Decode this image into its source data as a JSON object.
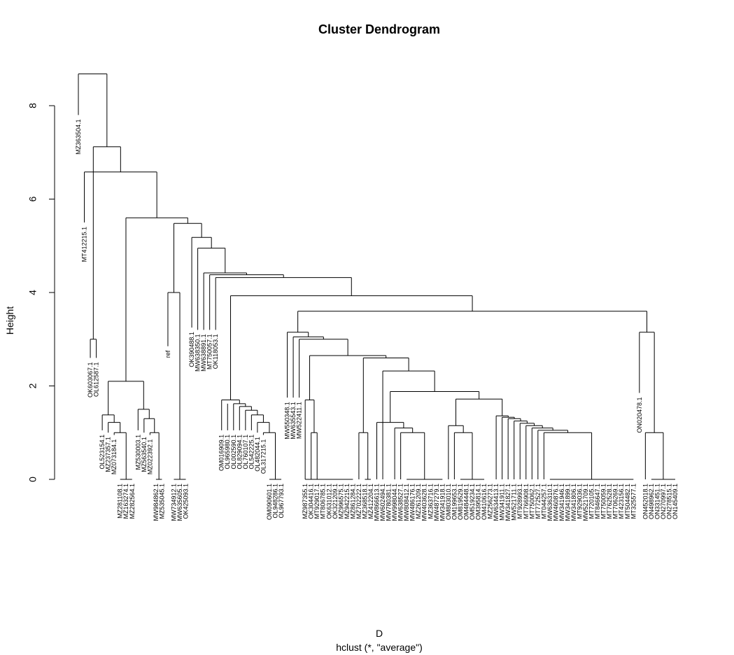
{
  "chart_data": {
    "type": "dendrogram",
    "title": "Cluster Dendrogram",
    "ylabel": "Height",
    "xlabel": "D",
    "subtitle": "hclust (*, \"average\")",
    "ylim": [
      0,
      9
    ],
    "y_ticks": [
      0,
      2,
      4,
      6,
      8
    ],
    "grid": false,
    "leaves": [
      "MZ363504.1",
      "MT412215.1",
      "OK603067.1",
      "OL612587.1",
      "OL523154.1",
      "MZ237357.1",
      "MZ073184.1",
      "MZ281108.1",
      "MZ163274.1",
      "MZ282564.1",
      "MZ530003.1",
      "MZ563540.1",
      "MZ022392.1",
      "MW984862.1",
      "MZ535045.1",
      "ref",
      "MW734912.1",
      "MW635605.1",
      "OK425093.1",
      "OK390488.1",
      "MW638350.1",
      "MW638891.1",
      "MT750057.1",
      "OK118053.1",
      "OM016909.1",
      "OL965980.1",
      "OL002590.1",
      "OL829094.1",
      "OL760107.1",
      "OL542225.1",
      "OL482044.1",
      "OL317215.1",
      "OM090601.1",
      "OL948286.1",
      "OL967793.1",
      "MW550348.1",
      "MW635543.1",
      "MW522411.1",
      "MZ987355.1",
      "OK304416.1",
      "MT929017.1",
      "MT806785.1",
      "OK631012.1",
      "OK321209.1",
      "MZ996575.1",
      "MZ942215.1",
      "MZ861284.1",
      "MZ702222.1",
      "MZ368518.1",
      "MZ412204.1",
      "MW866613.1",
      "MW602494.1",
      "MW780381.1",
      "MW998044.1",
      "MW638527.1",
      "MW808412.1",
      "MW486176.1",
      "MZ261209.1",
      "MW403628.1",
      "MZ363716.1",
      "MW487279.1",
      "MW341918.1",
      "OM803010.1",
      "OM199653.1",
      "OM819529.1",
      "OM484448.1",
      "OM519234.1",
      "OM395814.1",
      "OM410616.1",
      "MZ256273.1",
      "MW634413.1",
      "MW341911.1",
      "MW341827.1",
      "MW521711.1",
      "MT928993.1",
      "MT766908.1",
      "MT750062.1",
      "MT772527.1",
      "MT044257.1",
      "MW636310.1",
      "MW460876.1",
      "MW341946.1",
      "MW341899.1",
      "MW341806.1",
      "MT929036.1",
      "MW521709.1",
      "MT720105.1",
      "MT846647.1",
      "MT750059.1",
      "MT762528.1",
      "MT706269.1",
      "MT423156.1",
      "MT504482.1",
      "MT325577.1",
      "ON020478.1",
      "ON452018.1",
      "ON498962.1",
      "ON331451.1",
      "ON270997.1",
      "ON278515.1",
      "ON145409.1"
    ],
    "merges": [
      [
        -3,
        -4,
        3.0
      ],
      [
        -6,
        -7,
        1.0
      ],
      [
        -5,
        1,
        1.22
      ],
      [
        -5,
        1,
        1.22
      ],
      [
        -12,
        -13,
        1.0
      ],
      [
        -12,
        -13,
        1.0
      ],
      [
        -8,
        -9,
        0
      ],
      [
        -9,
        -10,
        0
      ],
      [
        7,
        8,
        0
      ],
      [
        3,
        9,
        1.38
      ],
      [
        -11,
        -14,
        0
      ],
      [
        -14,
        -15,
        0
      ],
      [
        11,
        12,
        0
      ],
      [
        5,
        13,
        1.3
      ],
      [
        6,
        14,
        1.5
      ],
      [
        10,
        15,
        2.1
      ],
      [
        -17,
        -18,
        0
      ],
      [
        -18,
        -19,
        0
      ],
      [
        17,
        18,
        0
      ],
      [
        -16,
        19,
        4.0
      ],
      [
        -31,
        -32,
        1.0
      ],
      [
        -30,
        21,
        1.22
      ],
      [
        -29,
        22,
        1.38
      ],
      [
        -28,
        23,
        1.48
      ],
      [
        -27,
        24,
        1.56
      ],
      [
        -26,
        25,
        1.62
      ],
      [
        -25,
        26,
        1.7
      ],
      [
        -33,
        -34,
        0
      ],
      [
        -34,
        -35,
        0
      ],
      [
        28,
        29,
        0
      ],
      [
        27,
        30,
        1.7
      ],
      [
        -39,
        -40,
        0
      ],
      [
        -41,
        -42,
        0
      ],
      [
        -42,
        -43,
        0
      ],
      [
        -43,
        -44,
        0
      ],
      [
        -44,
        -45,
        0
      ],
      [
        -45,
        -46,
        0
      ],
      [
        -46,
        -47,
        0
      ],
      [
        33,
        34,
        0
      ],
      [
        34,
        35,
        0
      ],
      [
        35,
        36,
        0
      ],
      [
        36,
        37,
        0
      ],
      [
        37,
        38,
        0
      ],
      [
        39,
        40,
        0
      ],
      [
        40,
        41,
        0
      ],
      [
        41,
        42,
        0
      ],
      [
        43,
        44,
        0
      ],
      [
        32,
        45,
        1.0
      ],
      [
        46,
        47,
        1.7
      ],
      [
        -48,
        -49,
        0
      ],
      [
        -49,
        -50,
        0
      ],
      [
        49,
        50,
        1.0
      ],
      [
        -51,
        -52,
        0
      ],
      [
        -52,
        -53,
        0
      ],
      [
        52,
        53,
        1.0
      ],
      [
        -54,
        -55,
        1.22
      ],
      [
        54,
        55,
        1.1
      ],
      [
        -56,
        -57,
        0
      ],
      [
        -57,
        -58,
        0
      ],
      [
        -58,
        -59,
        0
      ],
      [
        -59,
        -60,
        0
      ],
      [
        -60,
        -61,
        0
      ],
      [
        -61,
        -62,
        0
      ],
      [
        57,
        58,
        0
      ],
      [
        59,
        60,
        0
      ],
      [
        61,
        62,
        0
      ],
      [
        63,
        64,
        0
      ],
      [
        56,
        65,
        1.0
      ],
      [
        -63,
        -64,
        1.15
      ],
      [
        -65,
        -66,
        0
      ],
      [
        -66,
        -67,
        0
      ],
      [
        -67,
        -68,
        0
      ],
      [
        -68,
        -69,
        0
      ],
      [
        68,
        69,
        0
      ],
      [
        70,
        71,
        0
      ],
      [
        67,
        72,
        1.0
      ],
      [
        -70,
        -71,
        1.36
      ],
      [
        -72,
        -73,
        1.33
      ],
      [
        -74,
        -75,
        1.3
      ],
      [
        -76,
        -77,
        1.27
      ],
      [
        -78,
        -79,
        1.2
      ],
      [
        -80,
        -81,
        1.0
      ],
      [
        -82,
        -83,
        0
      ]
    ],
    "internal_nodes": [
      {
        "height": 8.68
      },
      {
        "height": 7.12
      },
      {
        "height": 6.58
      },
      {
        "height": 5.6
      },
      {
        "height": 5.48
      },
      {
        "height": 5.18
      },
      {
        "height": 4.95
      },
      {
        "height": 4.42
      },
      {
        "height": 4.32
      },
      {
        "height": 3.93
      },
      {
        "height": 3.6
      },
      {
        "height": 3.15
      },
      {
        "height": 3.05
      },
      {
        "height": 3.0
      },
      {
        "height": 2.65
      },
      {
        "height": 2.6
      },
      {
        "height": 2.32
      },
      {
        "height": 2.1
      },
      {
        "height": 1.88
      },
      {
        "height": 1.72
      }
    ]
  }
}
